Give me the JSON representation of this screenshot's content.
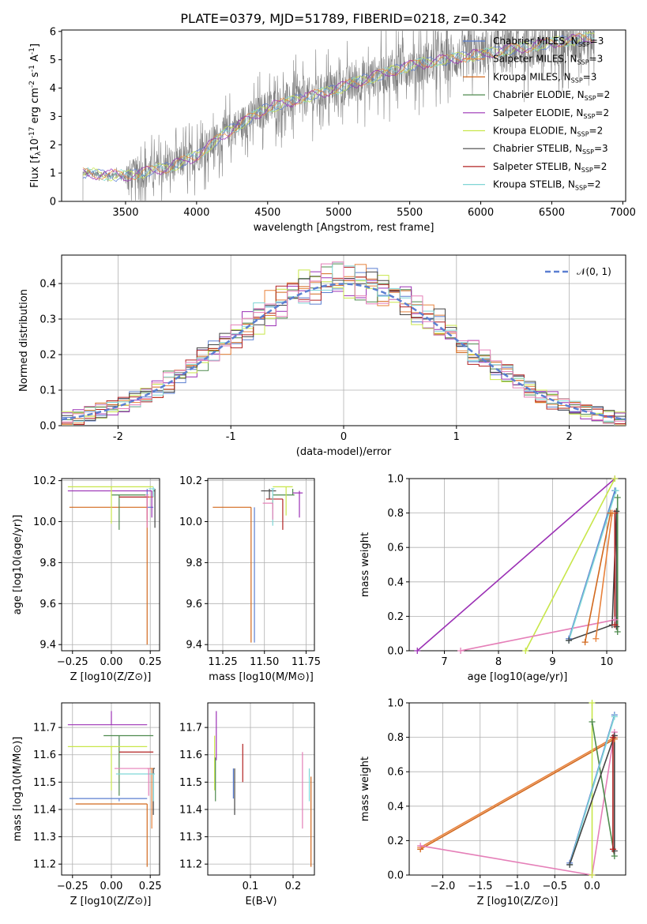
{
  "title": "PLATE=0379, MJD=51789, FIBERID=0218, z=0.342",
  "colors": {
    "Chabrier MILES": "#5b7fd1",
    "Salpeter MILES": "#e8823c",
    "Kroupa MILES": "#d2691e",
    "Chabrier ELODIE": "#4e8a4e",
    "Salpeter ELODIE": "#9b30b5",
    "Kroupa ELODIE": "#c8e64a",
    "Chabrier STELIB": "#444444",
    "Salpeter STELIB": "#b22222",
    "Kroupa STELIB": "#7fd6d6",
    "data": "#808080",
    "pink": "#e57fb8",
    "normal": "#5b7fd1"
  },
  "chart_data": [
    {
      "id": "spectrum",
      "type": "line",
      "title": "PLATE=0379, MJD=51789, FIBERID=0218, z=0.342",
      "xlabel": "wavelength [Angstrom, rest frame]",
      "ylabel_parts": [
        "Flux [f",
        "λ",
        "10",
        "-17",
        " erg cm",
        "-2",
        " s",
        "-1",
        " A",
        "-1",
        "]"
      ],
      "xlim": [
        3050,
        7020
      ],
      "ylim": [
        0,
        6.05
      ],
      "xticks": [
        3500,
        4000,
        4500,
        5000,
        5500,
        6000,
        6500,
        7000
      ],
      "yticks": [
        0,
        1,
        2,
        3,
        4,
        5,
        6
      ],
      "data_range": [
        3200,
        6800
      ],
      "data_continuum": [
        [
          3200,
          1.0
        ],
        [
          3500,
          0.9
        ],
        [
          3800,
          1.2
        ],
        [
          4000,
          1.6
        ],
        [
          4200,
          2.4
        ],
        [
          4500,
          3.3
        ],
        [
          5000,
          4.0
        ],
        [
          5500,
          4.8
        ],
        [
          6000,
          5.2
        ],
        [
          6500,
          5.6
        ],
        [
          6800,
          5.8
        ]
      ],
      "legend": [
        {
          "label": "Chabrier MILES, N",
          "sub": "SSP",
          "tail": "=3",
          "color": "Chabrier MILES"
        },
        {
          "label": "Salpeter MILES, N",
          "sub": "SSP",
          "tail": "=3",
          "color": "Salpeter MILES"
        },
        {
          "label": "Kroupa MILES, N",
          "sub": "SSP",
          "tail": "=3",
          "color": "Kroupa MILES"
        },
        {
          "label": "Chabrier ELODIE, N",
          "sub": "SSP",
          "tail": "=2",
          "color": "Chabrier ELODIE"
        },
        {
          "label": "Salpeter ELODIE, N",
          "sub": "SSP",
          "tail": "=2",
          "color": "Salpeter ELODIE"
        },
        {
          "label": "Kroupa ELODIE, N",
          "sub": "SSP",
          "tail": "=2",
          "color": "Kroupa ELODIE"
        },
        {
          "label": "Chabrier STELIB, N",
          "sub": "SSP",
          "tail": "=3",
          "color": "Chabrier STELIB"
        },
        {
          "label": "Salpeter STELIB, N",
          "sub": "SSP",
          "tail": "=2",
          "color": "Salpeter STELIB"
        },
        {
          "label": "Kroupa STELIB, N",
          "sub": "SSP",
          "tail": "=2",
          "color": "Kroupa STELIB"
        }
      ]
    },
    {
      "id": "residuals",
      "type": "line",
      "xlabel": "(data-model)/error",
      "ylabel": "Normed distribution",
      "xlim": [
        -2.5,
        2.5
      ],
      "ylim": [
        0,
        0.48
      ],
      "xticks": [
        -2,
        -1,
        0,
        1,
        2
      ],
      "yticks": [
        0.0,
        0.1,
        0.2,
        0.3,
        0.4
      ],
      "normal_label": "𝒩(0, 1)",
      "bin_width": 0.1,
      "hist_colors": [
        "Chabrier MILES",
        "Salpeter MILES",
        "Kroupa MILES",
        "Chabrier ELODIE",
        "Salpeter ELODIE",
        "Kroupa ELODIE",
        "Chabrier STELIB",
        "Salpeter STELIB",
        "Kroupa STELIB",
        "pink"
      ]
    },
    {
      "id": "z-age",
      "type": "scatter",
      "xlabel": "Z [log10(Z/Z⊙)]",
      "ylabel": "age  [log10(age/yr)]",
      "xlim": [
        -0.32,
        0.31
      ],
      "ylim": [
        9.37,
        10.21
      ],
      "xticks": [
        -0.25,
        0.0,
        0.25
      ],
      "xticklabels": [
        "−0.25",
        "0.00",
        "0.25"
      ],
      "yticks": [
        9.4,
        9.6,
        9.8,
        10.0,
        10.2
      ],
      "points": [
        {
          "c": "Chabrier MILES",
          "x": 0.23,
          "xe": [
            0.23,
            0.27
          ],
          "y": 10.07,
          "ye": [
            10.07,
            10.16
          ]
        },
        {
          "c": "Salpeter MILES",
          "x": 0.26,
          "xe": [
            0.21,
            0.27
          ],
          "y": 10.12,
          "ye": [
            10.12,
            10.15
          ]
        },
        {
          "c": "Kroupa MILES",
          "x": 0.23,
          "xe": [
            -0.27,
            0.23
          ],
          "y": 10.07,
          "ye": [
            9.4,
            10.07
          ]
        },
        {
          "c": "Chabrier ELODIE",
          "x": 0.05,
          "xe": [
            0.0,
            0.22
          ],
          "y": 10.13,
          "ye": [
            9.96,
            10.13
          ]
        },
        {
          "c": "Salpeter ELODIE",
          "x": 0.26,
          "xe": [
            -0.28,
            0.26
          ],
          "y": 10.15,
          "ye": [
            10.02,
            10.15
          ]
        },
        {
          "c": "Kroupa ELODIE",
          "x": 0.0,
          "xe": [
            -0.28,
            0.27
          ],
          "y": 10.17,
          "ye": [
            9.99,
            10.17
          ]
        },
        {
          "c": "Chabrier STELIB",
          "x": 0.28,
          "xe": [
            0.27,
            0.28
          ],
          "y": 10.15,
          "ye": [
            9.97,
            10.16
          ]
        },
        {
          "c": "Salpeter STELIB",
          "x": 0.23,
          "xe": [
            0.05,
            0.24
          ],
          "y": 10.12,
          "ye": [
            10.01,
            10.12
          ]
        },
        {
          "c": "Kroupa STELIB",
          "x": 0.27,
          "xe": [
            0.24,
            0.28
          ],
          "y": 10.16,
          "ye": [
            10.12,
            10.17
          ]
        },
        {
          "c": "pink",
          "x": 0.23,
          "xe": [
            0.22,
            0.24
          ],
          "y": 10.13,
          "ye": [
            9.97,
            10.13
          ]
        }
      ]
    },
    {
      "id": "mass-age",
      "type": "scatter",
      "xlabel": "mass [log10(M/M⊙)]",
      "ylabel": "",
      "xlim": [
        11.16,
        11.8
      ],
      "ylim": [
        9.37,
        10.21
      ],
      "xticks": [
        11.25,
        11.5,
        11.75
      ],
      "xticklabels": [
        "11.25",
        "11.50",
        "11.75"
      ],
      "yticks": [
        9.4,
        9.6,
        9.8,
        10.0,
        10.2
      ],
      "points": [
        {
          "c": "Chabrier MILES",
          "x": 11.44,
          "xe": [
            11.44,
            11.44
          ],
          "y": 10.07,
          "ye": [
            9.41,
            10.07
          ]
        },
        {
          "c": "Kroupa MILES",
          "x": 11.42,
          "xe": [
            11.19,
            11.42
          ],
          "y": 10.07,
          "ye": [
            9.41,
            10.07
          ]
        },
        {
          "c": "Salpeter MILES",
          "x": 11.55,
          "xe": [
            11.55,
            11.55
          ],
          "y": 10.12,
          "ye": [
            10.06,
            10.12
          ]
        },
        {
          "c": "Chabrier ELODIE",
          "x": 11.67,
          "xe": [
            11.55,
            11.68
          ],
          "y": 10.13,
          "ye": [
            10.13,
            10.16
          ]
        },
        {
          "c": "Salpeter ELODIE",
          "x": 11.71,
          "xe": [
            11.67,
            11.73
          ],
          "y": 10.14,
          "ye": [
            10.02,
            10.15
          ]
        },
        {
          "c": "Kroupa ELODIE",
          "x": 11.63,
          "xe": [
            11.55,
            11.67
          ],
          "y": 10.17,
          "ye": [
            10.03,
            10.17
          ]
        },
        {
          "c": "Chabrier STELIB",
          "x": 11.53,
          "xe": [
            11.48,
            11.57
          ],
          "y": 10.15,
          "ye": [
            10.11,
            10.16
          ]
        },
        {
          "c": "Salpeter STELIB",
          "x": 11.61,
          "xe": [
            11.51,
            11.61
          ],
          "y": 10.11,
          "ye": [
            9.96,
            10.11
          ]
        },
        {
          "c": "Kroupa STELIB",
          "x": 11.55,
          "xe": [
            11.54,
            11.56
          ],
          "y": 10.16,
          "ye": [
            9.98,
            10.16
          ]
        },
        {
          "c": "pink",
          "x": 11.55,
          "xe": [
            11.49,
            11.55
          ],
          "y": 10.09,
          "ye": [
            10.01,
            10.09
          ]
        }
      ]
    },
    {
      "id": "age-weight",
      "type": "line",
      "xlabel": "age  [log10(age/yr)]",
      "ylabel": "mass weight",
      "xlim": [
        6.35,
        10.35
      ],
      "ylim": [
        0,
        1.0
      ],
      "xticks": [
        7,
        8,
        9,
        10
      ],
      "yticks": [
        0.0,
        0.2,
        0.4,
        0.6,
        0.8,
        1.0
      ],
      "series": [
        {
          "c": "Salpeter ELODIE",
          "x": [
            6.5,
            10.15
          ],
          "y": [
            0.0,
            1.0
          ]
        },
        {
          "c": "Kroupa ELODIE",
          "x": [
            8.5,
            10.15
          ],
          "y": [
            0.0,
            1.0
          ]
        },
        {
          "c": "pink",
          "x": [
            7.3,
            10.15
          ],
          "y": [
            0.0,
            0.18
          ]
        },
        {
          "c": "Chabrier MILES",
          "x": [
            9.3,
            10.15
          ],
          "y": [
            0.07,
            0.93
          ]
        },
        {
          "c": "Kroupa STELIB",
          "x": [
            9.3,
            10.17
          ],
          "y": [
            0.06,
            0.93
          ]
        },
        {
          "c": "Chabrier STELIB",
          "x": [
            9.3,
            10.1,
            10.18,
            10.18
          ],
          "y": [
            0.06,
            0.15,
            0.81,
            0.14
          ]
        },
        {
          "c": "Chabrier ELODIE",
          "x": [
            10.2,
            10.2
          ],
          "y": [
            0.11,
            0.89
          ]
        },
        {
          "c": "Salpeter STELIB",
          "x": [
            10.15,
            10.15
          ],
          "y": [
            0.15,
            0.8
          ]
        },
        {
          "c": "Salpeter MILES",
          "x": [
            9.8,
            10.1
          ],
          "y": [
            0.07,
            0.8
          ]
        },
        {
          "c": "Kroupa MILES",
          "x": [
            9.6,
            10.07
          ],
          "y": [
            0.05,
            0.8
          ]
        }
      ]
    },
    {
      "id": "z-mass",
      "type": "scatter",
      "xlabel": "Z [log10(Z/Z⊙)]",
      "ylabel": "mass [log10(M/M⊙)]",
      "xlim": [
        -0.32,
        0.31
      ],
      "ylim": [
        11.16,
        11.79
      ],
      "xticks": [
        -0.25,
        0.0,
        0.25
      ],
      "xticklabels": [
        "−0.25",
        "0.00",
        "0.25"
      ],
      "yticks": [
        11.2,
        11.3,
        11.4,
        11.5,
        11.6,
        11.7
      ],
      "points": [
        {
          "c": "Chabrier MILES",
          "x": 0.05,
          "xe": [
            -0.27,
            0.23
          ],
          "y": 11.44,
          "ye": [
            11.43,
            11.44
          ]
        },
        {
          "c": "Kroupa MILES",
          "x": 0.23,
          "xe": [
            -0.23,
            0.23
          ],
          "y": 11.42,
          "ye": [
            11.19,
            11.42
          ]
        },
        {
          "c": "Salpeter MILES",
          "x": 0.26,
          "xe": [
            0.23,
            0.27
          ],
          "y": 11.55,
          "ye": [
            11.33,
            11.55
          ]
        },
        {
          "c": "Chabrier ELODIE",
          "x": 0.05,
          "xe": [
            -0.05,
            0.27
          ],
          "y": 11.67,
          "ye": [
            11.45,
            11.67
          ]
        },
        {
          "c": "Salpeter ELODIE",
          "x": 0.0,
          "xe": [
            -0.28,
            0.23
          ],
          "y": 11.71,
          "ye": [
            11.71,
            11.76
          ]
        },
        {
          "c": "Kroupa ELODIE",
          "x": 0.0,
          "xe": [
            -0.28,
            0.23
          ],
          "y": 11.63,
          "ye": [
            11.47,
            11.63
          ]
        },
        {
          "c": "Chabrier STELIB",
          "x": 0.27,
          "xe": [
            0.27,
            0.28
          ],
          "y": 11.55,
          "ye": [
            11.38,
            11.55
          ]
        },
        {
          "c": "Salpeter STELIB",
          "x": 0.24,
          "xe": [
            0.05,
            0.27
          ],
          "y": 11.61,
          "ye": [
            11.61,
            11.61
          ]
        },
        {
          "c": "Kroupa STELIB",
          "x": 0.27,
          "xe": [
            0.03,
            0.28
          ],
          "y": 11.53,
          "ye": [
            11.43,
            11.53
          ]
        },
        {
          "c": "pink",
          "x": 0.24,
          "xe": [
            0.02,
            0.25
          ],
          "y": 11.55,
          "ye": [
            11.45,
            11.55
          ]
        }
      ]
    },
    {
      "id": "ebv-mass",
      "type": "scatter",
      "xlabel": "E(B-V)",
      "ylabel": "",
      "xlim": [
        0.0,
        0.25
      ],
      "ylim": [
        11.16,
        11.79
      ],
      "xticks": [
        0.1,
        0.2
      ],
      "xticklabels": [
        "0.1",
        "0.2"
      ],
      "yticks": [
        11.2,
        11.3,
        11.4,
        11.5,
        11.6,
        11.7
      ],
      "points": [
        {
          "c": "Kroupa ELODIE",
          "x": 0.016,
          "ye": [
            11.47,
            11.67
          ]
        },
        {
          "c": "Salpeter ELODIE",
          "x": 0.02,
          "ye": [
            11.58,
            11.76
          ]
        },
        {
          "c": "Chabrier ELODIE",
          "x": 0.018,
          "ye": [
            11.43,
            11.59
          ]
        },
        {
          "c": "Chabrier MILES",
          "x": 0.06,
          "ye": [
            11.44,
            11.55
          ]
        },
        {
          "c": "Chabrier STELIB",
          "x": 0.063,
          "ye": [
            11.38,
            11.55
          ]
        },
        {
          "c": "Salpeter STELIB",
          "x": 0.082,
          "ye": [
            11.5,
            11.64
          ]
        },
        {
          "c": "pink",
          "x": 0.222,
          "ye": [
            11.33,
            11.61
          ]
        },
        {
          "c": "Kroupa STELIB",
          "x": 0.238,
          "ye": [
            11.43,
            11.55
          ]
        },
        {
          "c": "Kroupa MILES",
          "x": 0.242,
          "ye": [
            11.19,
            11.52
          ]
        }
      ]
    },
    {
      "id": "z-weight",
      "type": "line",
      "xlabel": "Z [log10(Z/Z⊙)]",
      "ylabel": "mass weight",
      "xlim": [
        -2.45,
        0.45
      ],
      "ylim": [
        0,
        1.0
      ],
      "xticks": [
        -2.0,
        -1.5,
        -1.0,
        -0.5,
        0.0
      ],
      "xticklabels": [
        "−2.0",
        "−1.5",
        "−1.0",
        "−0.5",
        "0.0"
      ],
      "yticks": [
        0.0,
        0.2,
        0.4,
        0.6,
        0.8,
        1.0
      ],
      "series": [
        {
          "c": "Salpeter MILES",
          "x": [
            -2.3,
            0.3
          ],
          "y": [
            0.16,
            0.8
          ]
        },
        {
          "c": "Kroupa MILES",
          "x": [
            -2.3,
            0.3
          ],
          "y": [
            0.15,
            0.79
          ]
        },
        {
          "c": "pink",
          "x": [
            -2.3,
            0.0,
            0.3
          ],
          "y": [
            0.17,
            0.0,
            0.83
          ]
        },
        {
          "c": "Kroupa ELODIE",
          "x": [
            0.0,
            0.0
          ],
          "y": [
            0.0,
            1.0
          ]
        },
        {
          "c": "Chabrier ELODIE",
          "x": [
            0.0,
            0.3
          ],
          "y": [
            0.89,
            0.11
          ]
        },
        {
          "c": "Chabrier MILES",
          "x": [
            -0.3,
            0.3
          ],
          "y": [
            0.07,
            0.93
          ]
        },
        {
          "c": "Kroupa STELIB",
          "x": [
            -0.3,
            0.3
          ],
          "y": [
            0.06,
            0.92
          ]
        },
        {
          "c": "Chabrier STELIB",
          "x": [
            -0.3,
            0.3,
            0.3
          ],
          "y": [
            0.06,
            0.81,
            0.14
          ]
        },
        {
          "c": "Salpeter STELIB",
          "x": [
            0.28,
            0.28
          ],
          "y": [
            0.15,
            0.8
          ]
        }
      ]
    }
  ]
}
